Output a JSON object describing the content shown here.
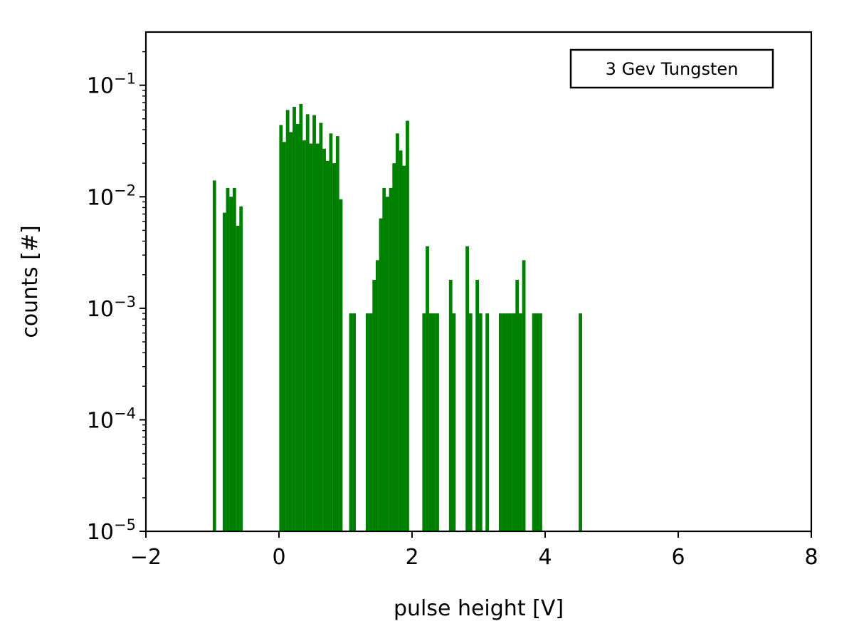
{
  "chart_data": {
    "type": "bar",
    "title": "",
    "xlabel": "pulse height [V]",
    "ylabel": "counts [#]",
    "xlim": [
      -2,
      8
    ],
    "ylim": [
      1e-05,
      0.3
    ],
    "yscale": "log",
    "grid": false,
    "bar_color": "#008000",
    "bin_width": 0.0515,
    "x_ticks": [
      {
        "value": -2,
        "label": "−2"
      },
      {
        "value": 0,
        "label": "0"
      },
      {
        "value": 2,
        "label": "2"
      },
      {
        "value": 4,
        "label": "4"
      },
      {
        "value": 6,
        "label": "6"
      },
      {
        "value": 8,
        "label": "8"
      }
    ],
    "y_ticks": [
      {
        "value": 0.1,
        "base": "10",
        "exp": "−1"
      },
      {
        "value": 0.01,
        "base": "10",
        "exp": "−2"
      },
      {
        "value": 0.001,
        "base": "10",
        "exp": "−3"
      },
      {
        "value": 0.0001,
        "base": "10",
        "exp": "−4"
      },
      {
        "value": 1e-05,
        "base": "10",
        "exp": "−5"
      }
    ],
    "legend": {
      "label": "3 Gev Tungsten",
      "position": "top-right"
    },
    "series": [
      {
        "x": [
          -0.97,
          -0.82,
          -0.77,
          -0.72,
          -0.67,
          -0.62,
          -0.57,
          0.03,
          0.08,
          0.13,
          0.18,
          0.23,
          0.28,
          0.33,
          0.38,
          0.43,
          0.48,
          0.53,
          0.58,
          0.63,
          0.68,
          0.73,
          0.78,
          0.83,
          0.88,
          0.93,
          1.08,
          1.13,
          1.33,
          1.38,
          1.43,
          1.48,
          1.53,
          1.58,
          1.63,
          1.68,
          1.73,
          1.78,
          1.83,
          1.88,
          1.93,
          2.18,
          2.23,
          2.28,
          2.33,
          2.38,
          2.58,
          2.63,
          2.83,
          2.88,
          2.98,
          3.03,
          3.13,
          3.33,
          3.38,
          3.43,
          3.48,
          3.53,
          3.58,
          3.63,
          3.68,
          3.83,
          3.88,
          3.93,
          4.53
        ],
        "values": [
          0.014,
          0.0072,
          0.012,
          0.01,
          0.012,
          0.0055,
          0.0082,
          0.044,
          0.031,
          0.06,
          0.038,
          0.064,
          0.045,
          0.068,
          0.032,
          0.055,
          0.03,
          0.054,
          0.03,
          0.046,
          0.027,
          0.021,
          0.037,
          0.02,
          0.035,
          0.0095,
          0.0009,
          0.0009,
          0.0009,
          0.0009,
          0.0018,
          0.0027,
          0.0064,
          0.012,
          0.01,
          0.012,
          0.02,
          0.037,
          0.026,
          0.019,
          0.048,
          0.0009,
          0.0036,
          0.0009,
          0.0009,
          0.0009,
          0.0018,
          0.0009,
          0.0036,
          0.0009,
          0.0018,
          0.0009,
          0.0009,
          0.0009,
          0.0009,
          0.0009,
          0.0009,
          0.0009,
          0.0018,
          0.0009,
          0.0027,
          0.0009,
          0.0009,
          0.0009,
          0.0009
        ]
      }
    ]
  }
}
